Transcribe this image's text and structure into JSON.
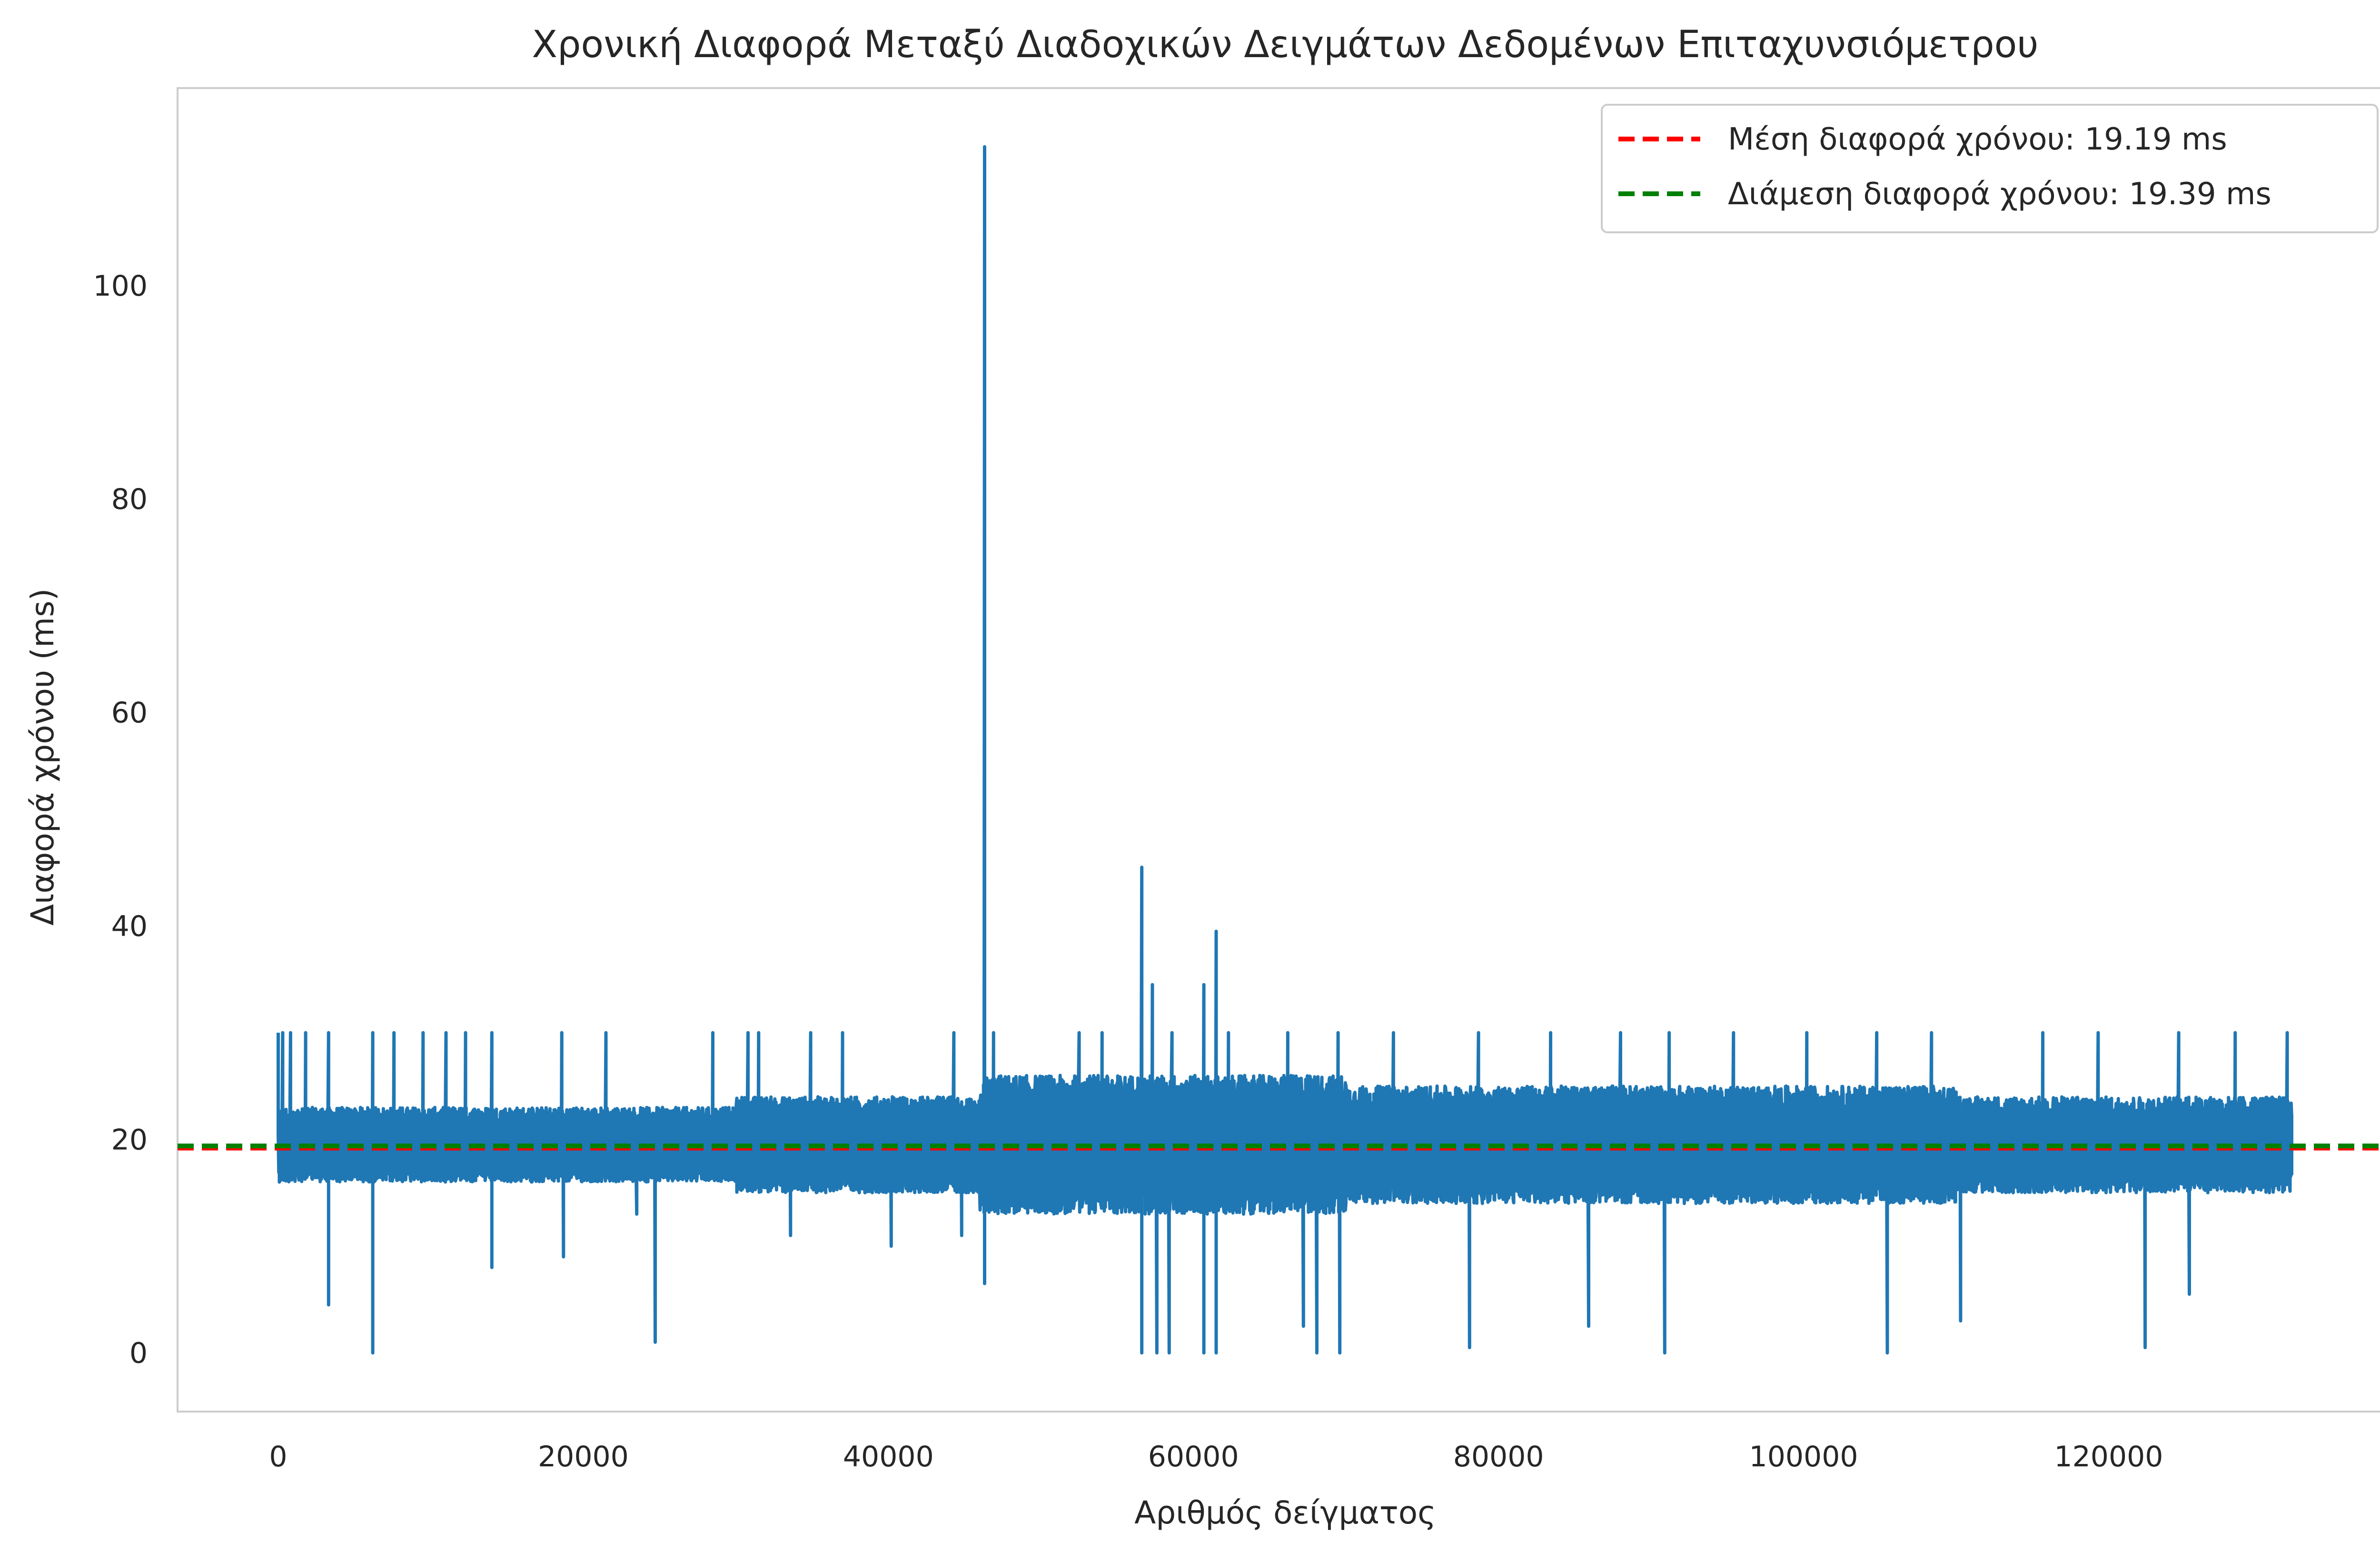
{
  "chart_data": {
    "type": "line",
    "title": "Χρονική Διαφορά Μεταξύ Διαδοχικών Δειγμάτων Δεδομένων Επιταχυνσιόμετρου",
    "xlabel": "Αριθμός δείγματος",
    "ylabel": "Διαφορά χρόνου (ms)",
    "xlim": [
      -6600,
      138600
    ],
    "ylim": [
      -5.5,
      118.5
    ],
    "xticks": [
      0,
      20000,
      40000,
      60000,
      80000,
      100000,
      120000
    ],
    "yticks": [
      0,
      20,
      40,
      60,
      80,
      100
    ],
    "grid": false,
    "legend_position": "top-right",
    "colors": {
      "series": "#1f77b4",
      "mean": "#ff0000",
      "median": "#008000",
      "axes_edge": "#cccccc",
      "text": "#262626"
    },
    "reference_lines": [
      {
        "label": "Μέση διαφορά χρόνου: 19.19 ms",
        "value": 19.19,
        "color": "#ff0000",
        "style": "dashed"
      },
      {
        "label": "Διάμεση διαφορά χρόνου: 19.39 ms",
        "value": 19.39,
        "color": "#008000",
        "style": "dashed"
      }
    ],
    "series": [
      {
        "color": "#1f77b4",
        "n_samples": 132000,
        "typical_band": [
          {
            "x_start": 0,
            "x_end": 30000,
            "low": 16,
            "high": 23
          },
          {
            "x_start": 30000,
            "x_end": 46000,
            "low": 15,
            "high": 24
          },
          {
            "x_start": 46000,
            "x_end": 70000,
            "low": 13,
            "high": 26
          },
          {
            "x_start": 70000,
            "x_end": 110000,
            "low": 14,
            "high": 25
          },
          {
            "x_start": 110000,
            "x_end": 132000,
            "low": 15,
            "high": 24
          }
        ],
        "spikes": [
          {
            "x": 46300,
            "y": 113
          },
          {
            "x": 56600,
            "y": 45.5
          },
          {
            "x": 61500,
            "y": 39.5
          },
          {
            "x": 57300,
            "y": 34.5
          },
          {
            "x": 60700,
            "y": 34.5
          },
          {
            "x": 0,
            "y": 30
          },
          {
            "x": 300,
            "y": 30
          },
          {
            "x": 800,
            "y": 30
          },
          {
            "x": 1800,
            "y": 30
          },
          {
            "x": 3300,
            "y": 30
          },
          {
            "x": 6200,
            "y": 30
          },
          {
            "x": 7600,
            "y": 30
          },
          {
            "x": 9500,
            "y": 30
          },
          {
            "x": 11000,
            "y": 30
          },
          {
            "x": 12300,
            "y": 30
          },
          {
            "x": 14000,
            "y": 30
          },
          {
            "x": 18600,
            "y": 30
          },
          {
            "x": 21500,
            "y": 30
          },
          {
            "x": 28500,
            "y": 30
          },
          {
            "x": 30800,
            "y": 30
          },
          {
            "x": 31500,
            "y": 30
          },
          {
            "x": 34900,
            "y": 30
          },
          {
            "x": 37000,
            "y": 30
          },
          {
            "x": 44300,
            "y": 30
          },
          {
            "x": 46900,
            "y": 30
          },
          {
            "x": 52500,
            "y": 30
          },
          {
            "x": 54000,
            "y": 30
          },
          {
            "x": 58600,
            "y": 30
          },
          {
            "x": 62300,
            "y": 30
          },
          {
            "x": 66200,
            "y": 30
          },
          {
            "x": 69500,
            "y": 30
          },
          {
            "x": 73100,
            "y": 30
          },
          {
            "x": 78700,
            "y": 30
          },
          {
            "x": 83400,
            "y": 30
          },
          {
            "x": 88000,
            "y": 30
          },
          {
            "x": 91200,
            "y": 30
          },
          {
            "x": 95400,
            "y": 30
          },
          {
            "x": 100200,
            "y": 30
          },
          {
            "x": 104800,
            "y": 30
          },
          {
            "x": 108400,
            "y": 30
          },
          {
            "x": 115700,
            "y": 30
          },
          {
            "x": 119300,
            "y": 30
          },
          {
            "x": 124600,
            "y": 30
          },
          {
            "x": 128300,
            "y": 30
          },
          {
            "x": 131700,
            "y": 30
          }
        ],
        "dips": [
          {
            "x": 6200,
            "y": 0
          },
          {
            "x": 24700,
            "y": 1
          },
          {
            "x": 46300,
            "y": 6.5
          },
          {
            "x": 56600,
            "y": 0
          },
          {
            "x": 57600,
            "y": 0
          },
          {
            "x": 58400,
            "y": 0
          },
          {
            "x": 60700,
            "y": 0
          },
          {
            "x": 61500,
            "y": 0
          },
          {
            "x": 67200,
            "y": 2.5
          },
          {
            "x": 68100,
            "y": 0
          },
          {
            "x": 69600,
            "y": 0
          },
          {
            "x": 78100,
            "y": 0.5
          },
          {
            "x": 85900,
            "y": 2.5
          },
          {
            "x": 90900,
            "y": 0
          },
          {
            "x": 105500,
            "y": 0
          },
          {
            "x": 110300,
            "y": 3
          },
          {
            "x": 122400,
            "y": 0.5
          },
          {
            "x": 125300,
            "y": 5.5
          },
          {
            "x": 3300,
            "y": 4.5
          },
          {
            "x": 14000,
            "y": 8
          },
          {
            "x": 18700,
            "y": 9
          },
          {
            "x": 23500,
            "y": 13
          },
          {
            "x": 33600,
            "y": 11
          },
          {
            "x": 40200,
            "y": 10
          },
          {
            "x": 44800,
            "y": 11
          }
        ]
      }
    ]
  }
}
